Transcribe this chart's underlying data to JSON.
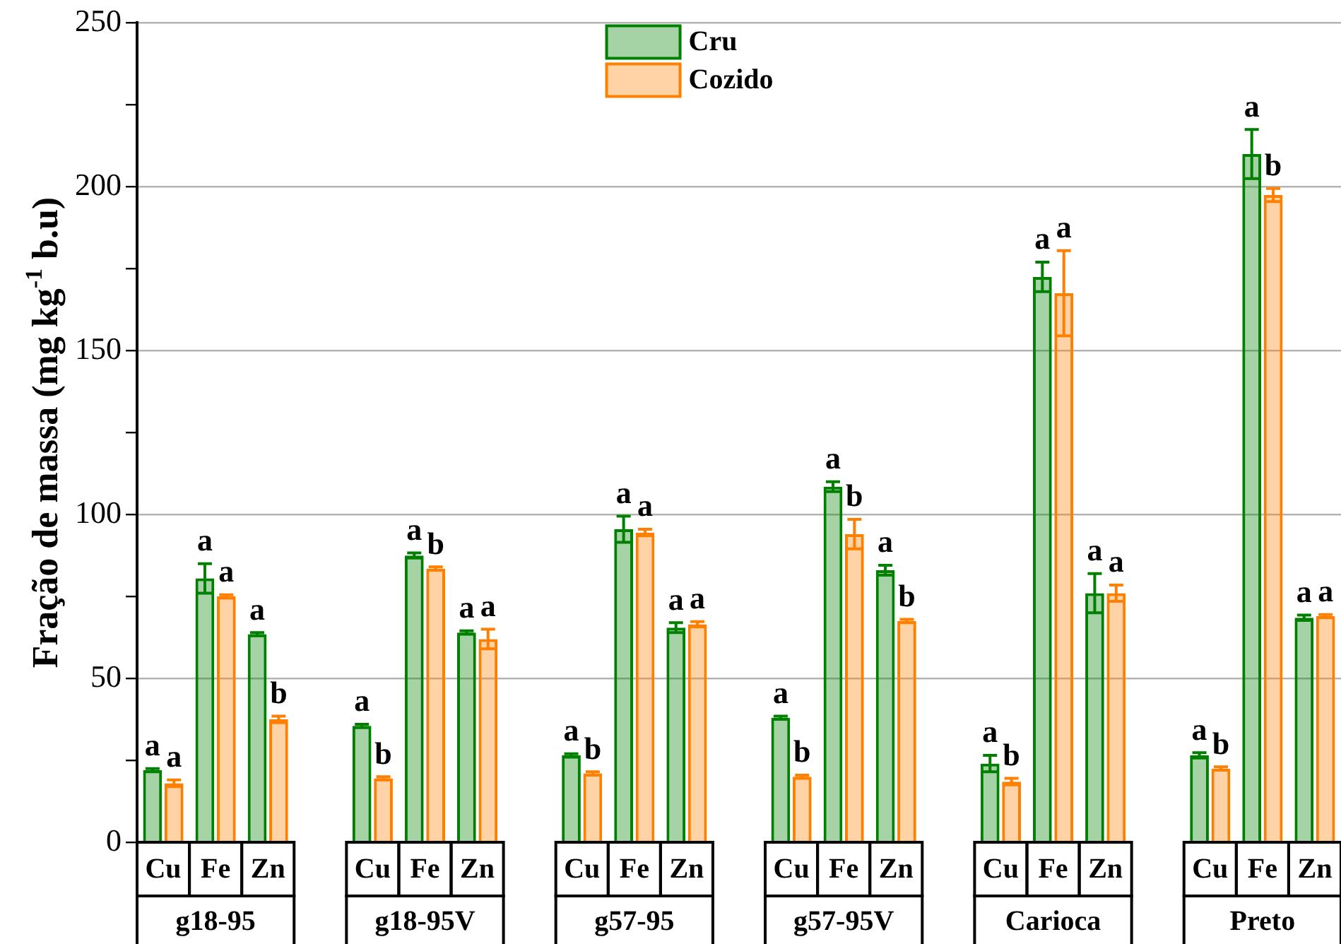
{
  "chart_data": {
    "type": "bar",
    "ylabel": "Fração de massa (mg kg$^{-1}$ b.u)",
    "categories": [
      "Cu",
      "Fe",
      "Zn",
      "Cu",
      "Fe",
      "Zn",
      "Cu",
      "Fe",
      "Zn",
      "Cu",
      "Fe",
      "Zn",
      "Cu",
      "Fe",
      "Zn",
      "Cu",
      "Fe",
      "Zn"
    ],
    "annotations": [
      "g18-95",
      "g18-95V",
      "g57-95",
      "g57-95V",
      "Carioca",
      "Preto"
    ],
    "series": [
      {
        "name": "Cru",
        "color": "#008000",
        "values": [
          22,
          80.5,
          63.5,
          35.5,
          87.5,
          64,
          26.5,
          95.5,
          65.5,
          38,
          108.5,
          83,
          24,
          172.5,
          76,
          26.5,
          210,
          68.5
        ],
        "errors": [
          0.5,
          4.5,
          0.5,
          0.5,
          0.8,
          0.5,
          0.5,
          4,
          1.5,
          0.5,
          1.5,
          1.5,
          2.5,
          4.5,
          6,
          0.8,
          7.5,
          0.8
        ],
        "value_labels": [
          "a",
          "a",
          "a",
          "a",
          "a",
          "a",
          "a",
          "a",
          "a",
          "a",
          "a",
          "a",
          "a",
          "a",
          "a",
          "a",
          "a",
          "a"
        ]
      },
      {
        "name": "Cozido",
        "color": "#ff8000",
        "values": [
          18,
          75,
          37.5,
          19.5,
          83.5,
          62,
          21,
          94.5,
          66.5,
          20,
          94,
          67.5,
          18.5,
          167.5,
          76,
          22.5,
          197.5,
          69
        ],
        "errors": [
          1,
          0.5,
          1,
          0.5,
          0.5,
          3,
          0.5,
          1,
          0.8,
          0.5,
          4.5,
          0.5,
          1,
          13,
          2.5,
          0.5,
          2,
          0.5
        ],
        "value_labels": [
          "a",
          "a",
          "b",
          "b",
          "b",
          "a",
          "b",
          "a",
          "a",
          "b",
          "b",
          "b",
          "b",
          "a",
          "a",
          "b",
          "b",
          "a"
        ]
      }
    ],
    "ylim": [
      0,
      250
    ],
    "yticks": [
      0,
      {
        "value": 25,
        "label": null
      },
      50,
      {
        "value": 75,
        "label": null
      },
      100,
      {
        "value": 125,
        "label": null
      },
      150,
      {
        "value": 175,
        "label": null
      },
      200,
      {
        "value": 225,
        "label": null
      },
      250
    ],
    "grid": "y",
    "legend": "top"
  }
}
